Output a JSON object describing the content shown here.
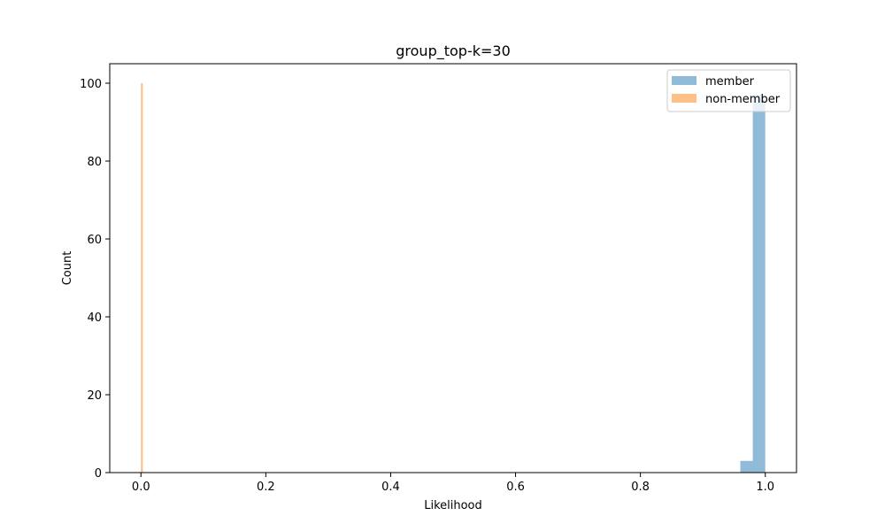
{
  "chart_data": {
    "type": "bar",
    "title": "group_top-k=30",
    "xlabel": "Likelihood",
    "ylabel": "Count",
    "xlim": [
      -0.05,
      1.05
    ],
    "ylim": [
      0,
      105
    ],
    "xticks": [
      0.0,
      0.2,
      0.4,
      0.6,
      0.8,
      1.0
    ],
    "xtick_labels": [
      "0.0",
      "0.2",
      "0.4",
      "0.6",
      "0.8",
      "1.0"
    ],
    "yticks": [
      0,
      20,
      40,
      60,
      80,
      100
    ],
    "ytick_labels": [
      "0",
      "20",
      "40",
      "60",
      "80",
      "100"
    ],
    "grid": false,
    "legend_position": "top-right",
    "series": [
      {
        "name": "member",
        "color": "#1f77b4",
        "opacity": 0.5,
        "bins": [
          {
            "x0": 0.96,
            "x1": 0.98,
            "count": 3
          },
          {
            "x0": 0.98,
            "x1": 1.0,
            "count": 97
          }
        ]
      },
      {
        "name": "non-member",
        "color": "#ff7f0e",
        "opacity": 0.5,
        "bins": [
          {
            "x0": 0.0,
            "x1": 0.003,
            "count": 100
          }
        ]
      }
    ]
  }
}
